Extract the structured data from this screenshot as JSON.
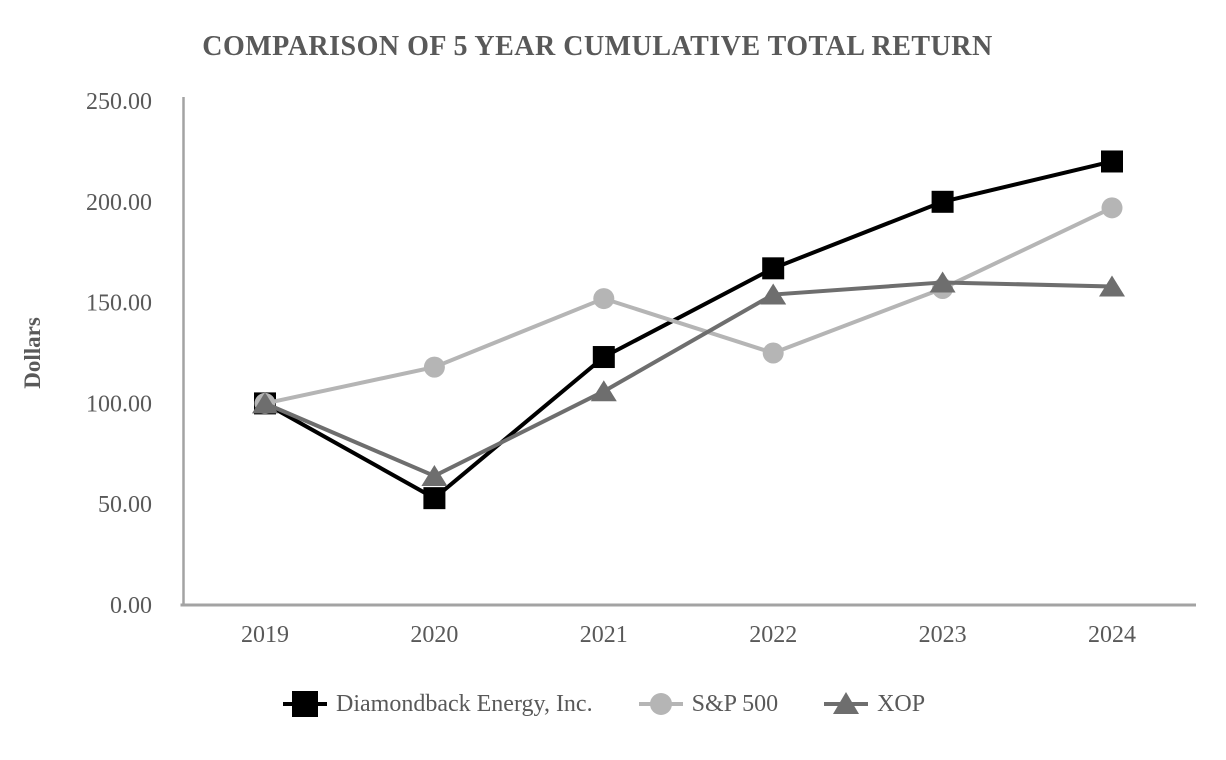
{
  "chart_data": {
    "type": "line",
    "title": "COMPARISON OF 5 YEAR CUMULATIVE TOTAL RETURN",
    "xlabel": "",
    "ylabel": "Dollars",
    "categories": [
      "2019",
      "2020",
      "2021",
      "2022",
      "2023",
      "2024"
    ],
    "ylim": [
      0,
      250
    ],
    "yticks": [
      0,
      50,
      100,
      150,
      200,
      250
    ],
    "ytick_labels": [
      "0.00",
      "50.00",
      "100.00",
      "150.00",
      "200.00",
      "250.00"
    ],
    "grid": false,
    "legend_position": "bottom",
    "series": [
      {
        "name": "Diamondback Energy, Inc.",
        "marker": "square",
        "color": "#000000",
        "values": [
          100,
          53,
          123,
          167,
          200,
          220
        ]
      },
      {
        "name": "S&P 500",
        "marker": "circle",
        "color": "#B5B5B5",
        "values": [
          100,
          118,
          152,
          125,
          157,
          197
        ]
      },
      {
        "name": "XOP",
        "marker": "triangle",
        "color": "#6E6E6E",
        "values": [
          100,
          64,
          106,
          154,
          160,
          158
        ]
      }
    ],
    "colors": {
      "axis": "#A3A3A3",
      "text": "#595959",
      "background": "#FFFFFF"
    }
  }
}
